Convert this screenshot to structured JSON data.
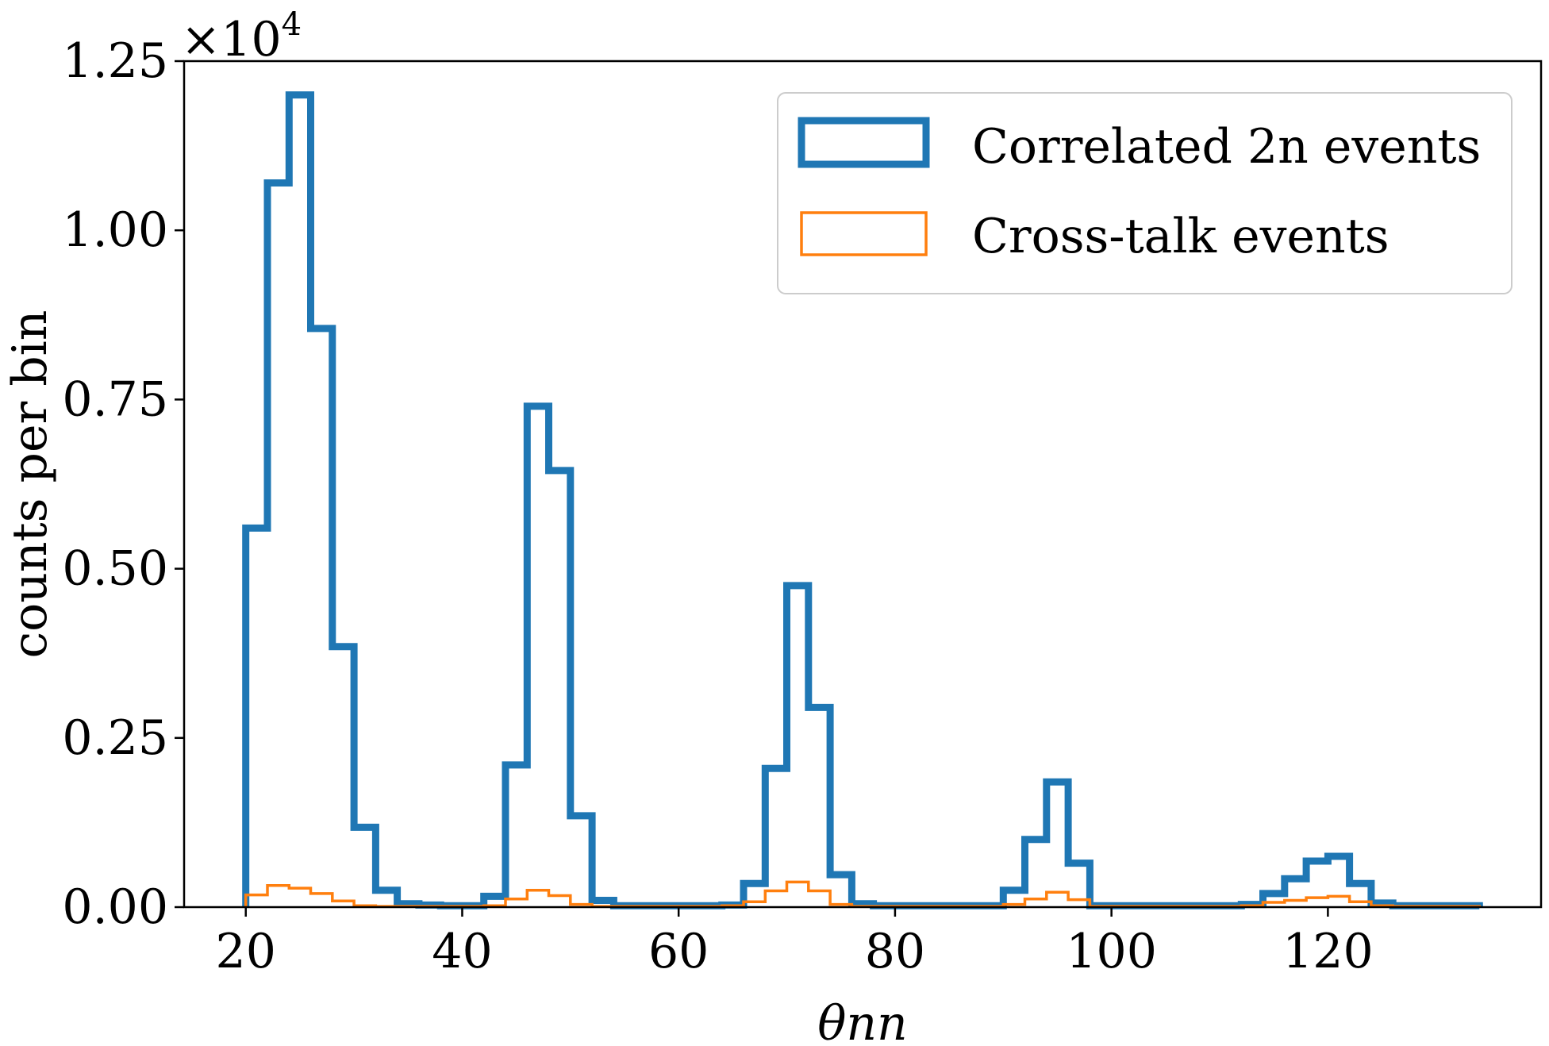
{
  "chart_data": {
    "type": "histogram",
    "title": "",
    "xlabel": "θnn",
    "ylabel": "counts per bin",
    "y_multiplier": "×10⁴",
    "x_multiplier_base": "×10",
    "x_multiplier_exp": "4",
    "xlim": [
      14.3,
      139.7
    ],
    "ylim": [
      0,
      1.25
    ],
    "xticks": [
      20,
      40,
      60,
      80,
      100,
      120
    ],
    "yticks": [
      0.0,
      0.25,
      0.5,
      0.75,
      1.0,
      1.25
    ],
    "ytick_labels": [
      "0.00",
      "0.25",
      "0.50",
      "0.75",
      "1.00",
      "1.25"
    ],
    "grid": false,
    "legend_position": "top-right",
    "bin_edges": [
      20,
      22,
      24,
      26,
      28,
      30,
      32,
      34,
      36,
      38,
      40,
      42,
      44,
      46,
      48,
      50,
      52,
      54,
      56,
      58,
      60,
      62,
      64,
      66,
      68,
      70,
      72,
      74,
      76,
      78,
      80,
      82,
      84,
      86,
      88,
      90,
      92,
      94,
      96,
      98,
      100,
      102,
      104,
      106,
      108,
      110,
      112,
      114,
      116,
      118,
      120,
      122,
      124,
      126,
      128,
      130,
      132,
      134
    ],
    "series": [
      {
        "name": "Correlated 2n events",
        "color": "#1f77b4",
        "line_width": "thick",
        "values": [
          0.56,
          1.07,
          1.2,
          0.855,
          0.385,
          0.118,
          0.025,
          0.005,
          0.003,
          0.002,
          0.002,
          0.016,
          0.21,
          0.74,
          0.645,
          0.135,
          0.01,
          0.002,
          0.002,
          0.002,
          0.002,
          0.002,
          0.003,
          0.035,
          0.205,
          0.475,
          0.295,
          0.048,
          0.005,
          0.002,
          0.002,
          0.002,
          0.002,
          0.002,
          0.002,
          0.025,
          0.1,
          0.185,
          0.065,
          0.002,
          0.002,
          0.002,
          0.002,
          0.002,
          0.002,
          0.002,
          0.004,
          0.02,
          0.042,
          0.068,
          0.075,
          0.035,
          0.006,
          0.002,
          0.002,
          0.002,
          0.002
        ]
      },
      {
        "name": "Cross-talk events",
        "color": "#ff7f0e",
        "line_width": "thin",
        "values": [
          0.018,
          0.032,
          0.028,
          0.02,
          0.009,
          0.002,
          0.001,
          0.001,
          0.001,
          0.001,
          0.001,
          0.002,
          0.012,
          0.025,
          0.017,
          0.004,
          0.001,
          0.001,
          0.001,
          0.001,
          0.001,
          0.001,
          0.002,
          0.008,
          0.024,
          0.037,
          0.024,
          0.004,
          0.001,
          0.001,
          0.001,
          0.001,
          0.001,
          0.001,
          0.001,
          0.004,
          0.012,
          0.022,
          0.011,
          0.001,
          0.001,
          0.001,
          0.001,
          0.001,
          0.001,
          0.001,
          0.002,
          0.007,
          0.01,
          0.014,
          0.016,
          0.008,
          0.002,
          0.001,
          0.001,
          0.001,
          0.001
        ]
      }
    ]
  }
}
